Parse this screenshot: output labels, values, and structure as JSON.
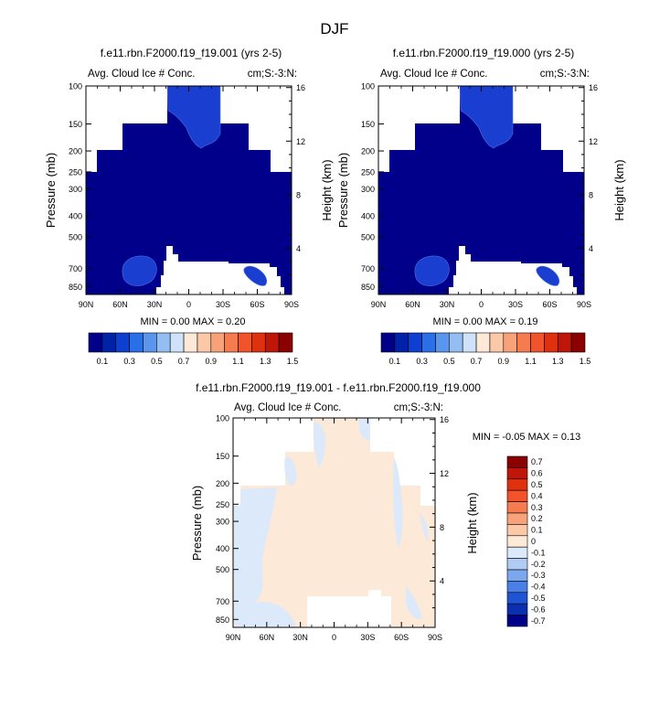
{
  "figure_title": "DJF",
  "chart_data": [
    {
      "type": "heatmap",
      "title": "f.e11.rbn.F2000.f19_f19.001 (yrs 2-5)",
      "subtitle_left": "Avg. Cloud Ice # Conc.",
      "subtitle_right": "cm;S:-3:N:",
      "ylabel": "Pressure (mb)",
      "ylabel_right": "Height (km)",
      "x_ticks": [
        "90N",
        "60N",
        "30N",
        "0",
        "30S",
        "60S",
        "90S"
      ],
      "y_ticks": [
        "100",
        "150",
        "200",
        "250",
        "300",
        "400",
        "500",
        "700",
        "850"
      ],
      "y_ticks_right": [
        "16",
        "12",
        "8",
        "4"
      ],
      "stats": "MIN =  0.00  MAX =  0.20",
      "colorbar": {
        "labels": [
          "0.1",
          "0.3",
          "0.5",
          "0.7",
          "0.9",
          "1.1",
          "1.3",
          "1.5"
        ],
        "colors": [
          "#00008b",
          "#0022a8",
          "#0d3fd2",
          "#2a6ee8",
          "#5a96ee",
          "#94bdf1",
          "#cfe2fa",
          "#fde9d8",
          "#fbc9a8",
          "#f9a27a",
          "#f67c50",
          "#f2532a",
          "#e0310f",
          "#c0160a",
          "#8b0000"
        ]
      }
    },
    {
      "type": "heatmap",
      "title": "f.e11.rbn.F2000.f19_f19.000 (yrs 2-5)",
      "subtitle_left": "Avg. Cloud Ice # Conc.",
      "subtitle_right": "cm;S:-3:N:",
      "ylabel": "Pressure (mb)",
      "ylabel_right": "Height (km)",
      "x_ticks": [
        "90N",
        "60N",
        "30N",
        "0",
        "30S",
        "60S",
        "90S"
      ],
      "y_ticks": [
        "100",
        "150",
        "200",
        "250",
        "300",
        "400",
        "500",
        "700",
        "850"
      ],
      "y_ticks_right": [
        "16",
        "12",
        "8",
        "4"
      ],
      "stats": "MIN =  0.00  MAX =  0.19",
      "colorbar": {
        "labels": [
          "0.1",
          "0.3",
          "0.5",
          "0.7",
          "0.9",
          "1.1",
          "1.3",
          "1.5"
        ],
        "colors": [
          "#00008b",
          "#0022a8",
          "#0d3fd2",
          "#2a6ee8",
          "#5a96ee",
          "#94bdf1",
          "#cfe2fa",
          "#fde9d8",
          "#fbc9a8",
          "#f9a27a",
          "#f67c50",
          "#f2532a",
          "#e0310f",
          "#c0160a",
          "#8b0000"
        ]
      }
    },
    {
      "type": "heatmap",
      "title": "f.e11.rbn.F2000.f19_f19.001 - f.e11.rbn.F2000.f19_f19.000",
      "subtitle_left": "Avg. Cloud Ice # Conc.",
      "subtitle_right": "cm;S:-3:N:",
      "ylabel": "Pressure (mb)",
      "ylabel_right": "Height (km)",
      "x_ticks": [
        "90N",
        "60N",
        "30N",
        "0",
        "30S",
        "60S",
        "90S"
      ],
      "y_ticks": [
        "100",
        "150",
        "200",
        "250",
        "300",
        "400",
        "500",
        "700",
        "850"
      ],
      "y_ticks_right": [
        "16",
        "12",
        "8",
        "4"
      ],
      "stats": "MIN =  -0.05  MAX =  0.13",
      "colorbar": {
        "labels": [
          "0.7",
          "0.6",
          "0.5",
          "0.4",
          "0.3",
          "0.2",
          "0.1",
          "0",
          "-0.1",
          "-0.2",
          "-0.3",
          "-0.4",
          "-0.5",
          "-0.6",
          "-0.7"
        ],
        "colors": [
          "#8b0000",
          "#c0160a",
          "#e0310f",
          "#f2532a",
          "#f67c50",
          "#f9a27a",
          "#fbc9a8",
          "#fde9d8",
          "#dbe9fb",
          "#b0ccf5",
          "#7ba7ee",
          "#4a80e6",
          "#1f55d4",
          "#0a2fb0",
          "#00008b"
        ]
      }
    }
  ]
}
